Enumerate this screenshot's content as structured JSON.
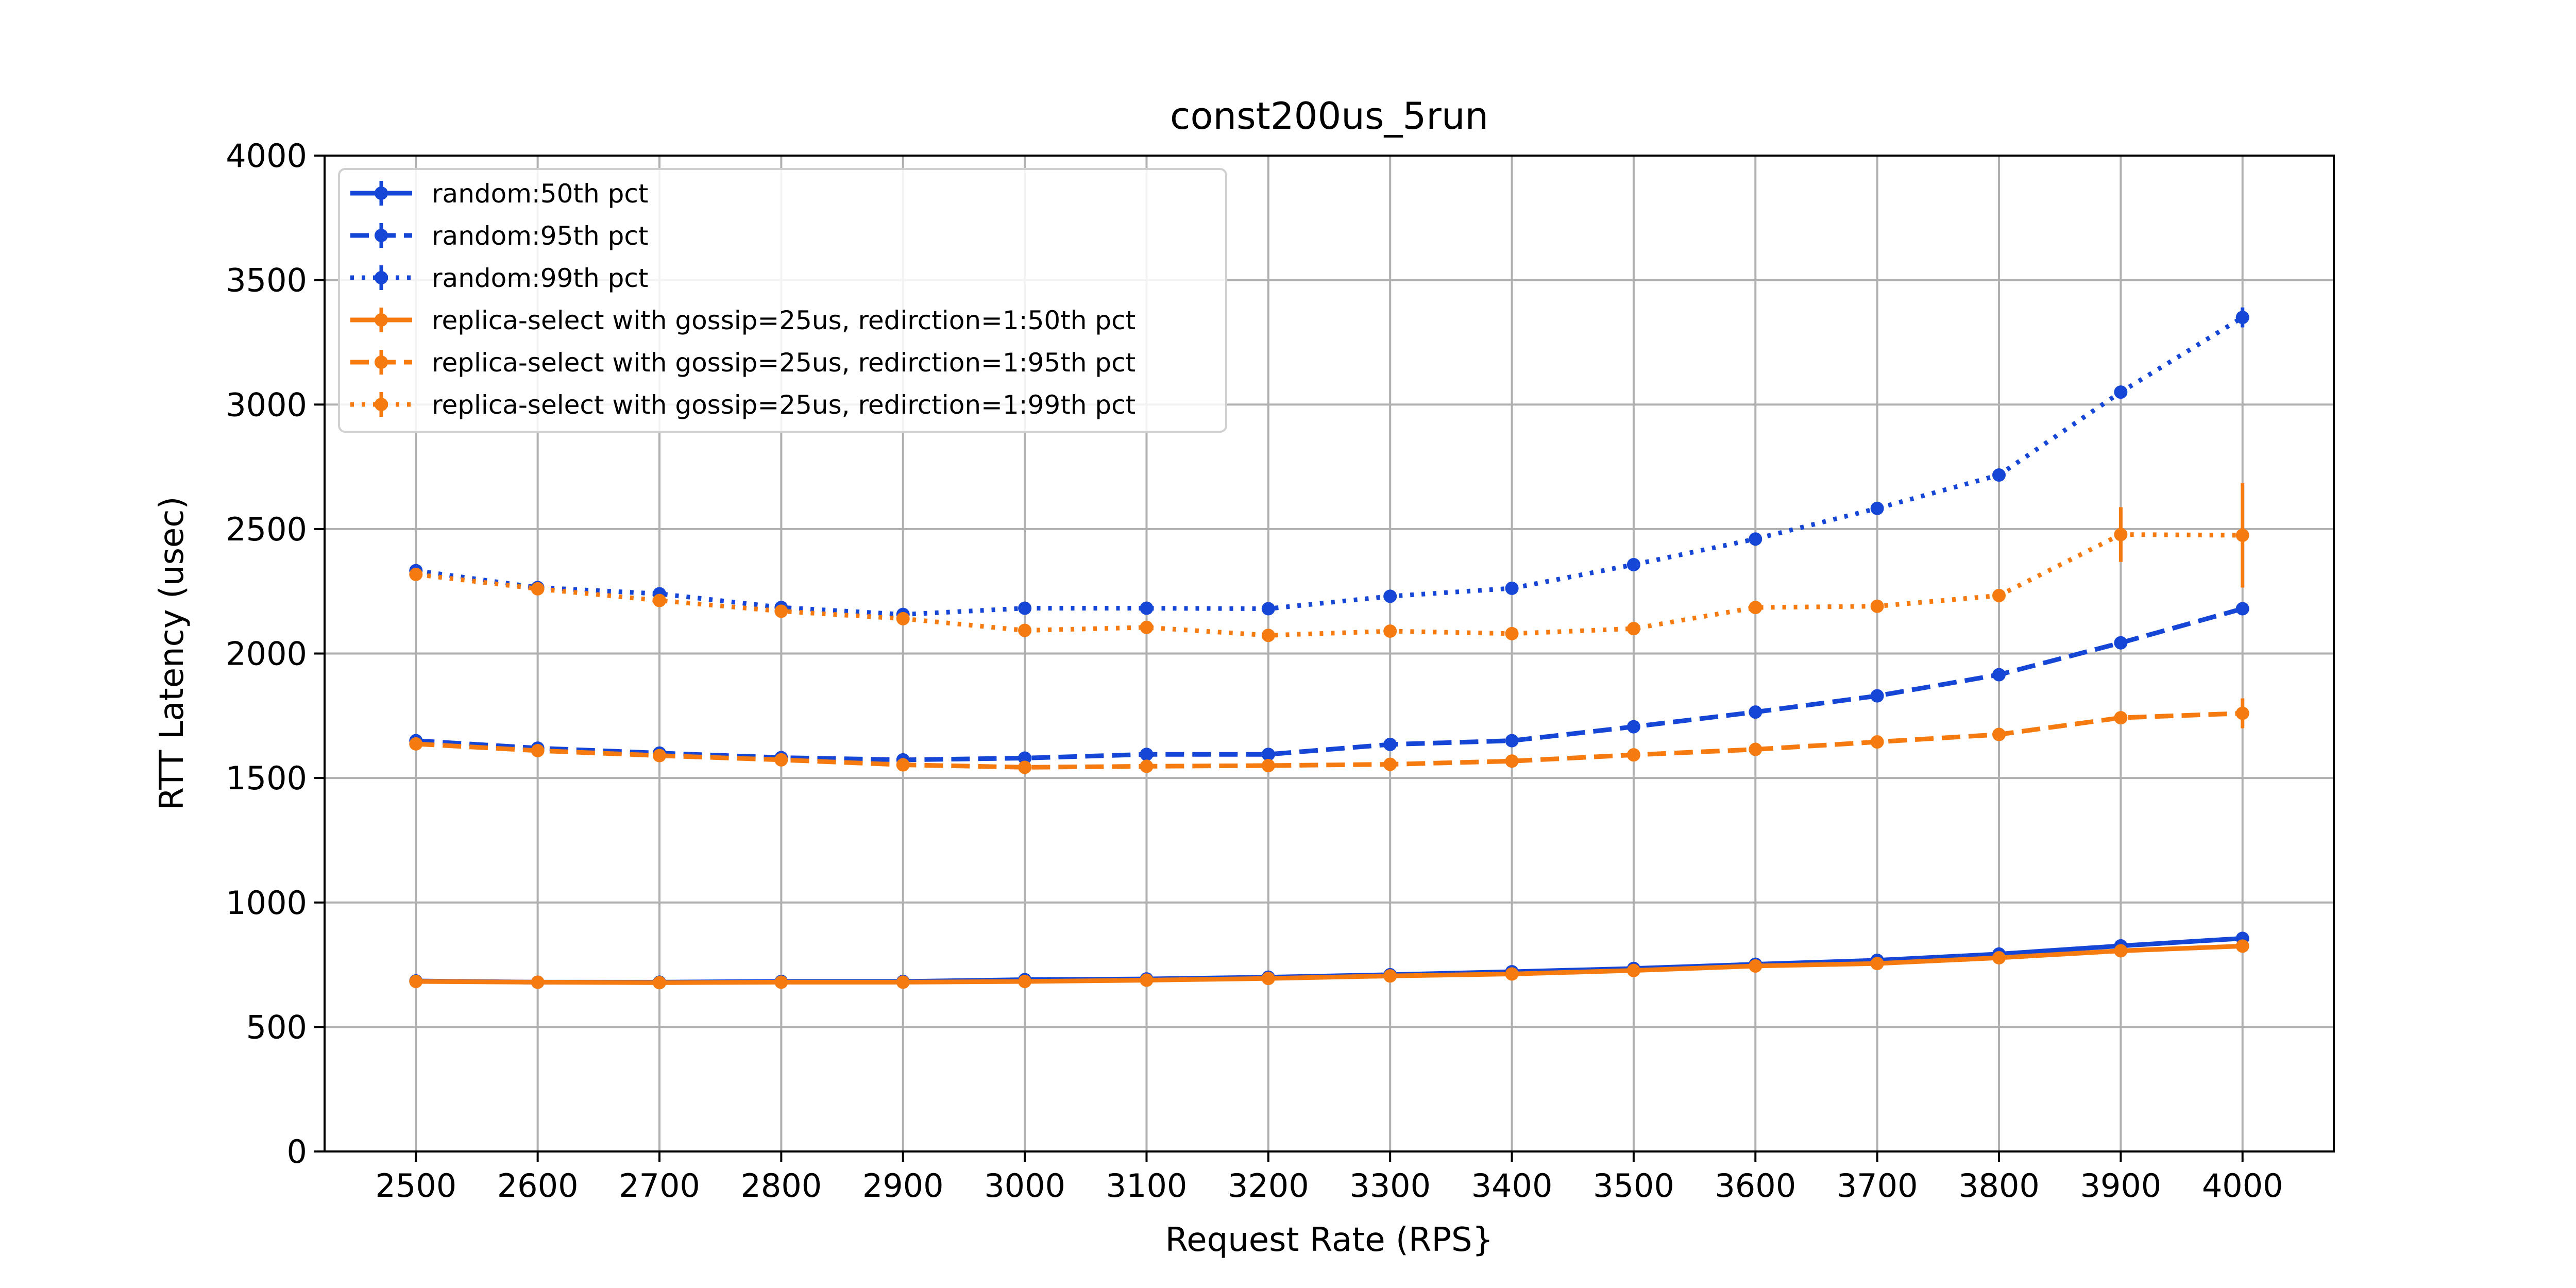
{
  "chart_data": {
    "type": "line",
    "title": "const200us_5run",
    "xlabel": "Request Rate (RPS}",
    "ylabel": "RTT Latency (usec)",
    "x": [
      2500,
      2600,
      2700,
      2800,
      2900,
      3000,
      3100,
      3200,
      3300,
      3400,
      3500,
      3600,
      3700,
      3800,
      3900,
      4000
    ],
    "xticks": [
      "2500",
      "2600",
      "2700",
      "2800",
      "2900",
      "3000",
      "3100",
      "3200",
      "3300",
      "3400",
      "3500",
      "3600",
      "3700",
      "3800",
      "3900",
      "4000"
    ],
    "xlim": [
      2425,
      4075
    ],
    "ylim": [
      0,
      4000
    ],
    "yticks": [
      0,
      500,
      1000,
      1500,
      2000,
      2500,
      3000,
      3500,
      4000
    ],
    "grid": true,
    "legend_position": "top-left",
    "series": [
      {
        "name": "random:50th pct",
        "color": "#1546d6",
        "dash": "solid",
        "values": [
          685,
          680,
          680,
          683,
          683,
          690,
          693,
          700,
          710,
          722,
          735,
          752,
          768,
          793,
          826,
          856
        ],
        "err": [
          0,
          0,
          0,
          0,
          0,
          0,
          0,
          0,
          0,
          0,
          0,
          0,
          0,
          0,
          8,
          10
        ]
      },
      {
        "name": "random:95th pct",
        "color": "#1546d6",
        "dash": "dashed",
        "values": [
          1650,
          1620,
          1600,
          1582,
          1573,
          1580,
          1595,
          1595,
          1635,
          1650,
          1706,
          1765,
          1830,
          1915,
          2043,
          2180
        ],
        "err": [
          0,
          0,
          0,
          0,
          0,
          0,
          0,
          0,
          0,
          0,
          0,
          0,
          0,
          0,
          10,
          15
        ]
      },
      {
        "name": "random:99th pct",
        "color": "#1546d6",
        "dash": "dotted",
        "values": [
          2333,
          2265,
          2240,
          2185,
          2157,
          2182,
          2182,
          2180,
          2230,
          2262,
          2357,
          2460,
          2583,
          2717,
          3050,
          3350
        ],
        "err": [
          0,
          0,
          0,
          0,
          0,
          0,
          0,
          0,
          0,
          0,
          0,
          0,
          0,
          15,
          15,
          40
        ]
      },
      {
        "name": "replica-select with gossip=25us, redirction=1:50th pct",
        "color": "#f57a10",
        "dash": "solid",
        "values": [
          683,
          680,
          678,
          680,
          680,
          683,
          688,
          695,
          705,
          713,
          727,
          745,
          755,
          778,
          806,
          825
        ],
        "err": [
          0,
          0,
          0,
          0,
          0,
          0,
          0,
          0,
          0,
          0,
          0,
          0,
          0,
          0,
          0,
          12
        ]
      },
      {
        "name": "replica-select with gossip=25us, redirction=1:95th pct",
        "color": "#f57a10",
        "dash": "dashed",
        "values": [
          1637,
          1610,
          1590,
          1573,
          1553,
          1543,
          1547,
          1550,
          1555,
          1568,
          1593,
          1615,
          1645,
          1675,
          1742,
          1760
        ],
        "err": [
          0,
          0,
          0,
          0,
          0,
          0,
          0,
          0,
          0,
          0,
          0,
          0,
          0,
          0,
          15,
          60
        ]
      },
      {
        "name": "replica-select with gossip=25us, redirction=1:99th pct",
        "color": "#f57a10",
        "dash": "dotted",
        "values": [
          2318,
          2260,
          2213,
          2170,
          2140,
          2093,
          2105,
          2073,
          2090,
          2080,
          2100,
          2185,
          2190,
          2233,
          2478,
          2475
        ],
        "err": [
          0,
          0,
          0,
          0,
          0,
          0,
          0,
          0,
          0,
          0,
          0,
          0,
          0,
          0,
          110,
          210
        ]
      }
    ]
  }
}
